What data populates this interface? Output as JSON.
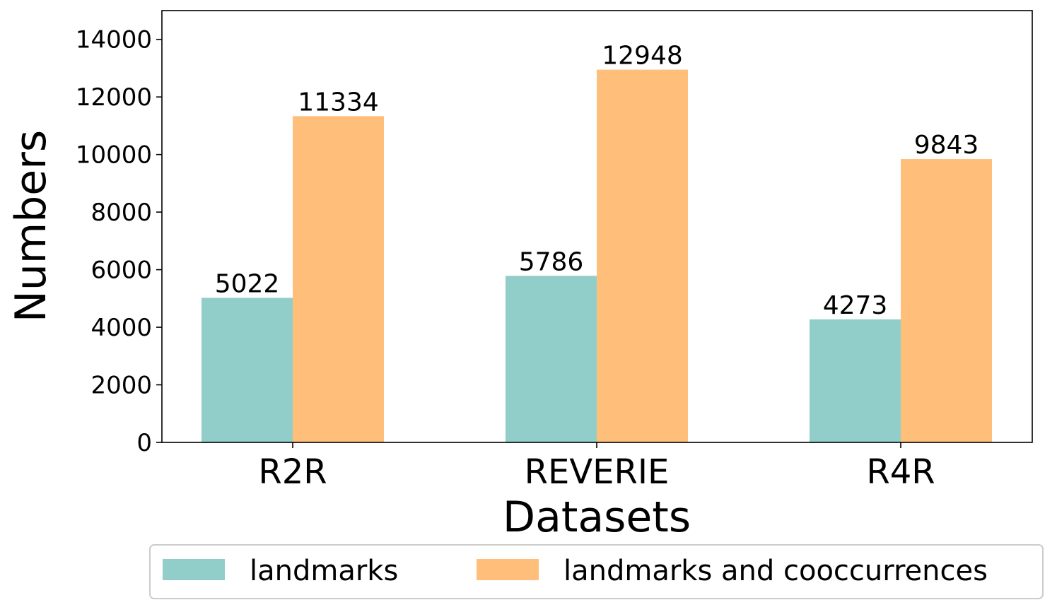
{
  "chart_data": {
    "type": "bar",
    "title": "",
    "xlabel": "Datasets",
    "ylabel": "Numbers",
    "categories": [
      "R2R",
      "REVERIE",
      "R4R"
    ],
    "series": [
      {
        "name": "landmarks",
        "values": [
          5022,
          5786,
          4273
        ],
        "color": "#91cec9"
      },
      {
        "name": "landmarks and cooccurrences",
        "values": [
          11334,
          12948,
          9843
        ],
        "color": "#ffbf7a"
      }
    ],
    "data_labels": [
      [
        "5022",
        "5786",
        "4273"
      ],
      [
        "11334",
        "12948",
        "9843"
      ]
    ],
    "ylim": [
      0,
      15000
    ],
    "yticks": [
      0,
      2000,
      4000,
      6000,
      8000,
      10000,
      12000,
      14000
    ],
    "ytick_labels": [
      "0",
      "2000",
      "4000",
      "6000",
      "8000",
      "10000",
      "12000",
      "14000"
    ],
    "grid": false,
    "legend_position": "bottom"
  }
}
